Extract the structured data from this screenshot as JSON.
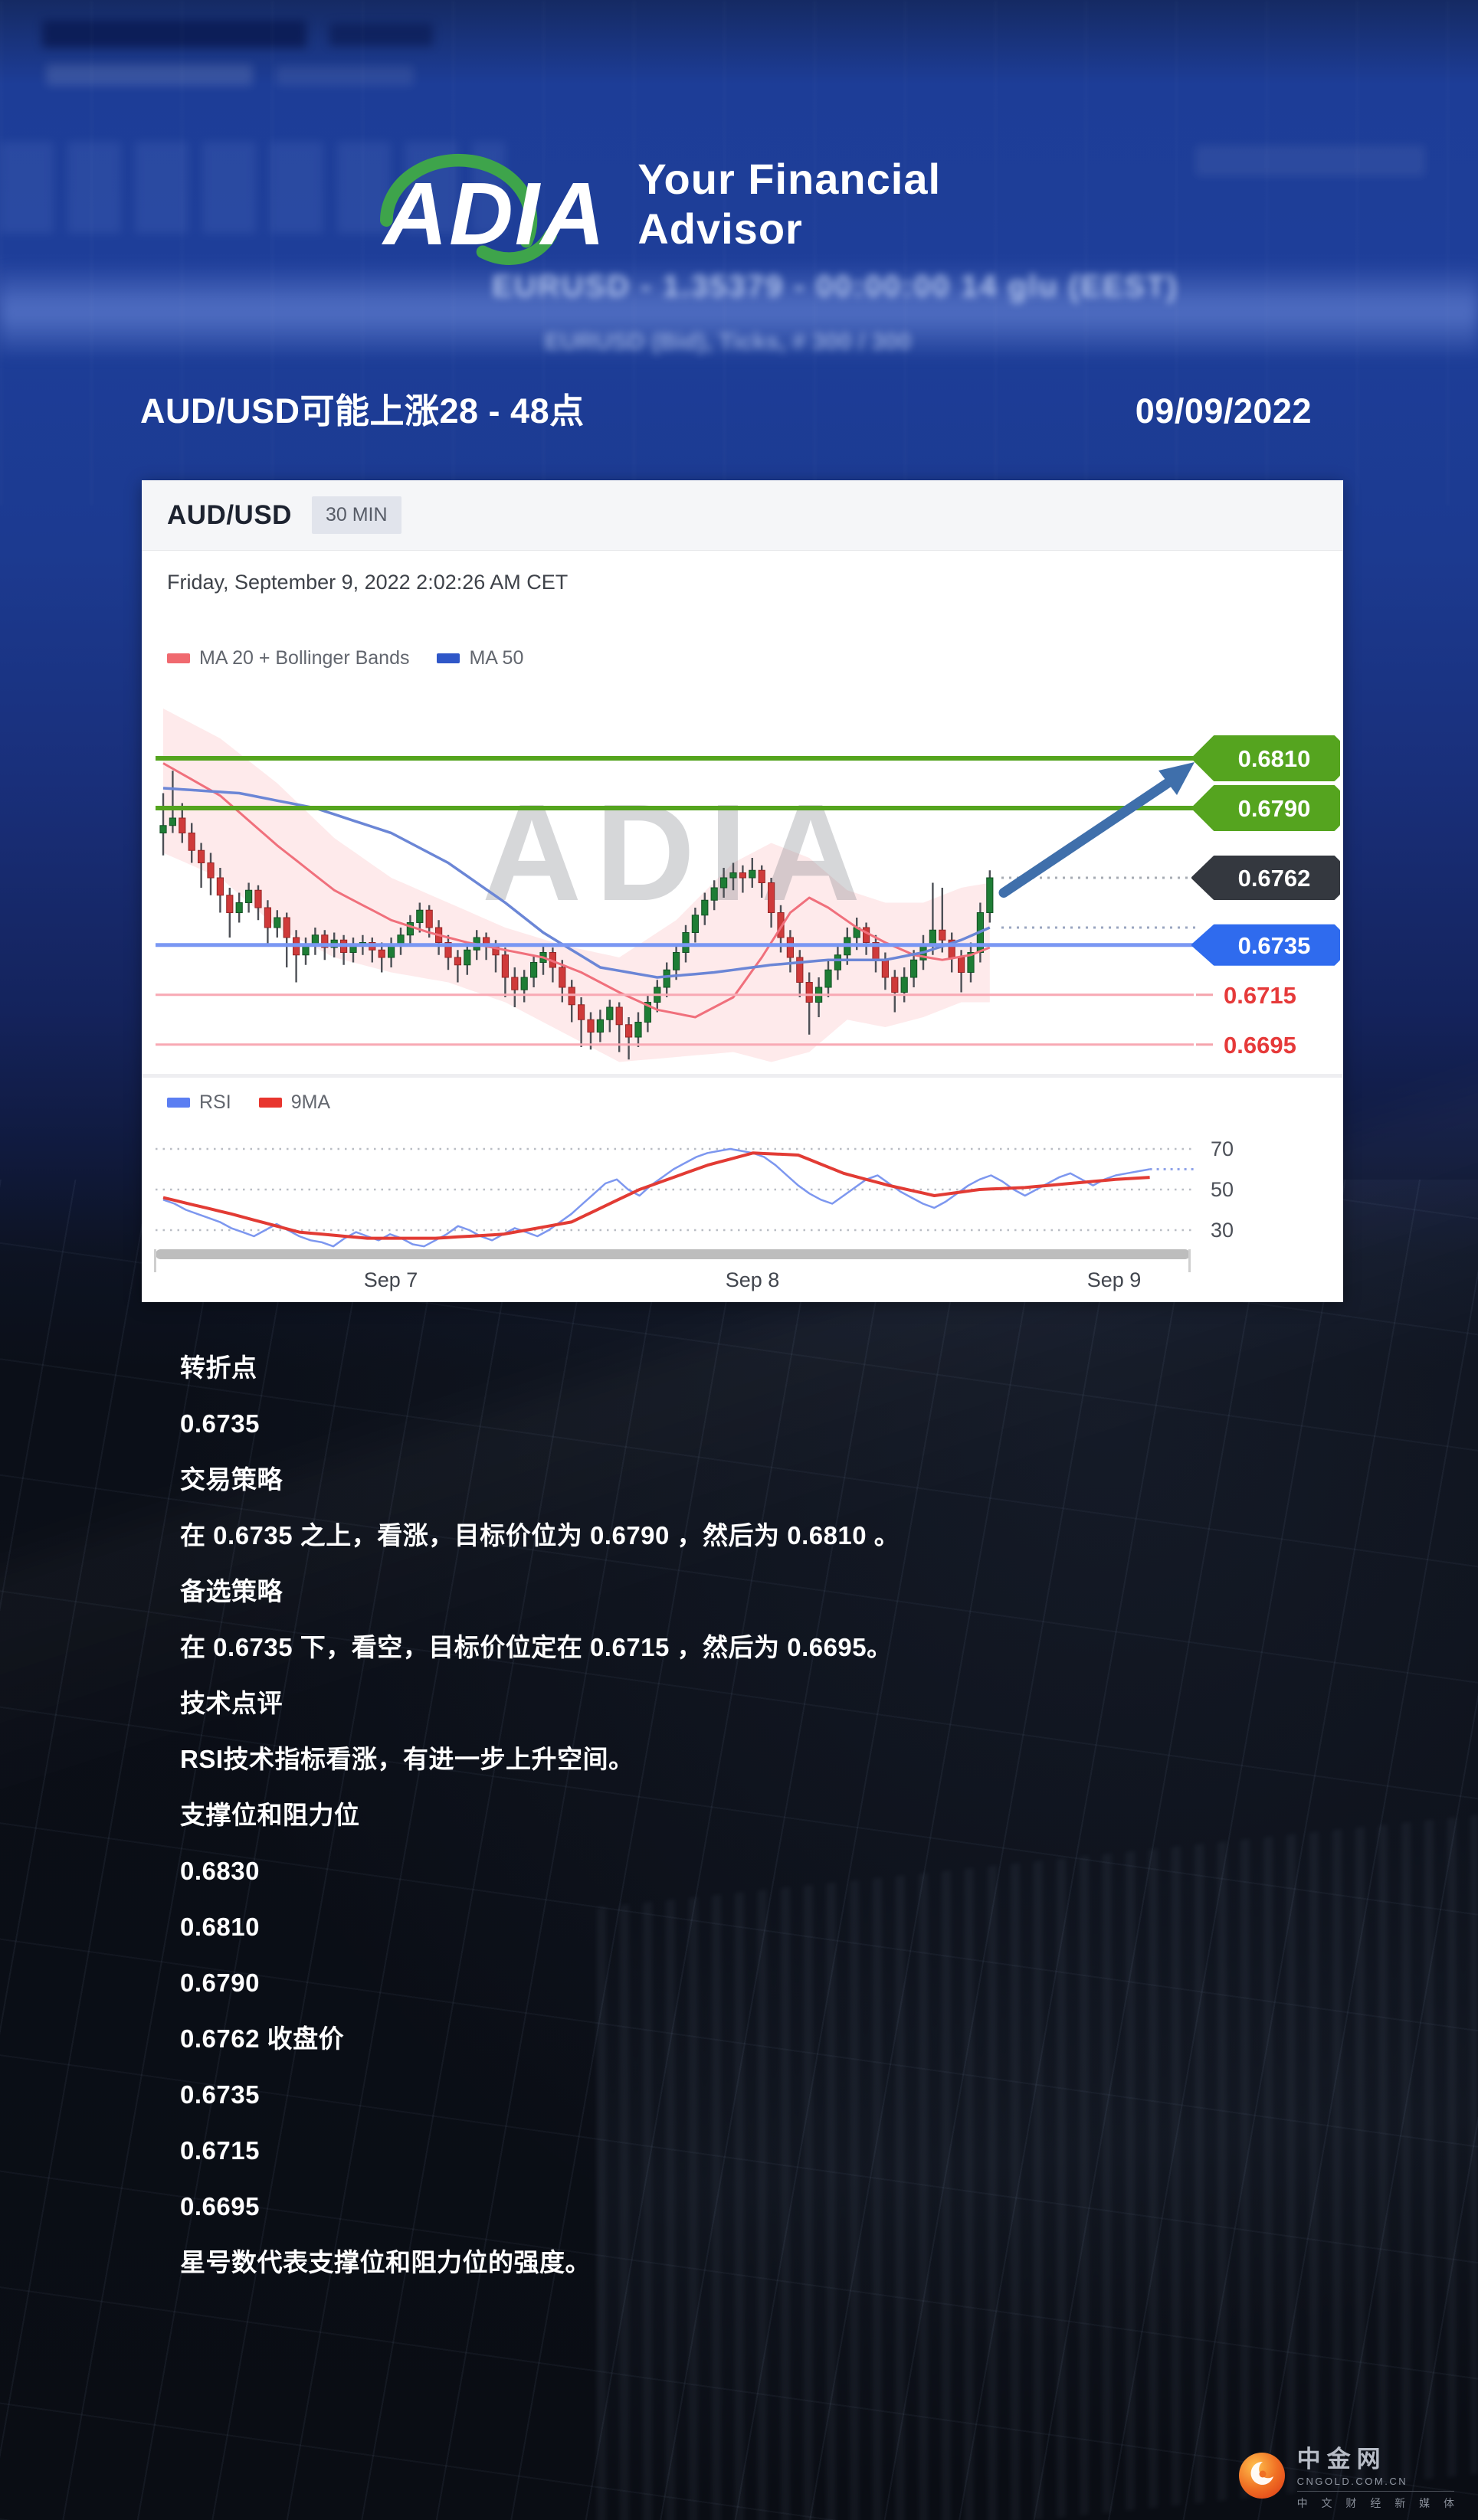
{
  "header": {
    "logo_text": "ADIA",
    "tagline": "Your Financial Advisor"
  },
  "title_row": {
    "title": "AUD/USD可能上涨28 - 48点",
    "date": "09/09/2022"
  },
  "background": {
    "blurred_line_1": "EURUSD - 1.35379 - 00:00:00 14 glu (EEST)",
    "blurred_line_2": "EURUSD (Bid), Ticks, # 300 / 300"
  },
  "chart_panel": {
    "symbol": "AUD/USD",
    "timeframe": "30 MIN",
    "timestamp": "Friday, September 9, 2022 2:02:26 AM CET",
    "watermark": "ADIA",
    "legend_price": [
      {
        "label": "MA 20 + Bollinger Bands",
        "color": "#f0696f"
      },
      {
        "label": "MA 50",
        "color": "#2f57c8"
      }
    ],
    "legend_rsi": [
      {
        "label": "RSI",
        "color": "#5b7ef2"
      },
      {
        "label": "9MA",
        "color": "#e8352e"
      }
    ]
  },
  "chart_data": {
    "type": "candlestick",
    "title": "AUD/USD 30 MIN",
    "pip": 0.0001,
    "price_levels": [
      {
        "price": 0.681,
        "kind": "resistance",
        "style": "tag",
        "color": "#55a41f",
        "line": "solid-green"
      },
      {
        "price": 0.679,
        "kind": "resistance",
        "style": "tag",
        "color": "#55a41f",
        "line": "solid-green"
      },
      {
        "price": 0.6762,
        "kind": "last_close",
        "style": "tag",
        "color": "#34383f",
        "line": "dotted-leader"
      },
      {
        "price": 0.6735,
        "kind": "pivot",
        "style": "tag",
        "color": "#2f6bee",
        "line": "solid-blue"
      },
      {
        "price": 0.6715,
        "kind": "support",
        "style": "text",
        "color": "#e63a3a",
        "line": "solid-pink"
      },
      {
        "price": 0.6695,
        "kind": "support",
        "style": "text",
        "color": "#e63a3a",
        "line": "solid-pink"
      }
    ],
    "candles_ohlc_pips": [
      [
        6780,
        6796,
        6771,
        6783
      ],
      [
        6783,
        6805,
        6780,
        6786
      ],
      [
        6786,
        6792,
        6776,
        6780
      ],
      [
        6780,
        6784,
        6768,
        6773
      ],
      [
        6773,
        6776,
        6758,
        6768
      ],
      [
        6768,
        6772,
        6755,
        6762
      ],
      [
        6762,
        6766,
        6748,
        6755
      ],
      [
        6755,
        6758,
        6738,
        6748
      ],
      [
        6748,
        6756,
        6744,
        6752
      ],
      [
        6752,
        6760,
        6748,
        6757
      ],
      [
        6757,
        6759,
        6745,
        6750
      ],
      [
        6750,
        6753,
        6735,
        6742
      ],
      [
        6742,
        6749,
        6738,
        6746
      ],
      [
        6746,
        6748,
        6726,
        6738
      ],
      [
        6738,
        6741,
        6720,
        6731
      ],
      [
        6731,
        6738,
        6727,
        6735
      ],
      [
        6735,
        6742,
        6731,
        6739
      ],
      [
        6739,
        6741,
        6729,
        6734
      ],
      [
        6734,
        6740,
        6730,
        6737
      ],
      [
        6737,
        6739,
        6727,
        6732
      ],
      [
        6732,
        6738,
        6728,
        6735
      ],
      [
        6735,
        6739,
        6731,
        6736
      ],
      [
        6736,
        6738,
        6728,
        6733
      ],
      [
        6733,
        6736,
        6724,
        6730
      ],
      [
        6730,
        6738,
        6726,
        6735
      ],
      [
        6735,
        6742,
        6731,
        6739
      ],
      [
        6739,
        6747,
        6735,
        6744
      ],
      [
        6744,
        6752,
        6740,
        6749
      ],
      [
        6749,
        6751,
        6738,
        6742
      ],
      [
        6742,
        6745,
        6731,
        6736
      ],
      [
        6736,
        6739,
        6725,
        6730
      ],
      [
        6730,
        6733,
        6720,
        6727
      ],
      [
        6727,
        6736,
        6723,
        6733
      ],
      [
        6733,
        6741,
        6729,
        6738
      ],
      [
        6738,
        6740,
        6729,
        6735
      ],
      [
        6735,
        6737,
        6724,
        6731
      ],
      [
        6731,
        6734,
        6714,
        6722
      ],
      [
        6722,
        6726,
        6710,
        6717
      ],
      [
        6717,
        6725,
        6712,
        6722
      ],
      [
        6722,
        6731,
        6718,
        6728
      ],
      [
        6728,
        6735,
        6723,
        6732
      ],
      [
        6732,
        6734,
        6720,
        6726
      ],
      [
        6726,
        6729,
        6712,
        6718
      ],
      [
        6718,
        6721,
        6704,
        6711
      ],
      [
        6711,
        6714,
        6694,
        6705
      ],
      [
        6705,
        6708,
        6693,
        6700
      ],
      [
        6700,
        6709,
        6696,
        6705
      ],
      [
        6705,
        6713,
        6700,
        6710
      ],
      [
        6710,
        6712,
        6692,
        6703
      ],
      [
        6703,
        6706,
        6689,
        6698
      ],
      [
        6698,
        6708,
        6694,
        6704
      ],
      [
        6704,
        6715,
        6700,
        6712
      ],
      [
        6712,
        6721,
        6708,
        6718
      ],
      [
        6718,
        6728,
        6714,
        6725
      ],
      [
        6725,
        6735,
        6721,
        6732
      ],
      [
        6732,
        6743,
        6728,
        6740
      ],
      [
        6740,
        6750,
        6736,
        6747
      ],
      [
        6747,
        6756,
        6743,
        6753
      ],
      [
        6753,
        6761,
        6749,
        6758
      ],
      [
        6758,
        6766,
        6754,
        6762
      ],
      [
        6762,
        6768,
        6757,
        6764
      ],
      [
        6764,
        6767,
        6756,
        6762
      ],
      [
        6762,
        6770,
        6758,
        6765
      ],
      [
        6765,
        6767,
        6754,
        6760
      ],
      [
        6760,
        6762,
        6742,
        6748
      ],
      [
        6748,
        6751,
        6732,
        6738
      ],
      [
        6738,
        6741,
        6724,
        6730
      ],
      [
        6730,
        6733,
        6714,
        6720
      ],
      [
        6720,
        6724,
        6699,
        6712
      ],
      [
        6712,
        6722,
        6706,
        6718
      ],
      [
        6718,
        6729,
        6714,
        6725
      ],
      [
        6725,
        6735,
        6721,
        6731
      ],
      [
        6731,
        6742,
        6727,
        6738
      ],
      [
        6738,
        6746,
        6733,
        6742
      ],
      [
        6742,
        6744,
        6731,
        6736
      ],
      [
        6736,
        6739,
        6724,
        6729
      ],
      [
        6729,
        6732,
        6717,
        6722
      ],
      [
        6722,
        6725,
        6708,
        6716
      ],
      [
        6716,
        6726,
        6712,
        6722
      ],
      [
        6722,
        6733,
        6718,
        6729
      ],
      [
        6729,
        6739,
        6725,
        6735
      ],
      [
        6735,
        6760,
        6731,
        6741
      ],
      [
        6741,
        6758,
        6732,
        6737
      ],
      [
        6737,
        6740,
        6724,
        6730
      ],
      [
        6730,
        6733,
        6716,
        6724
      ],
      [
        6724,
        6736,
        6720,
        6732
      ],
      [
        6732,
        6752,
        6728,
        6748
      ],
      [
        6748,
        6765,
        6744,
        6762
      ]
    ],
    "ma20_keypoints": [
      [
        0,
        6808
      ],
      [
        6,
        6795
      ],
      [
        12,
        6775
      ],
      [
        18,
        6757
      ],
      [
        24,
        6745
      ],
      [
        28,
        6740
      ],
      [
        32,
        6736
      ],
      [
        36,
        6733
      ],
      [
        40,
        6730
      ],
      [
        44,
        6724
      ],
      [
        48,
        6716
      ],
      [
        52,
        6709
      ],
      [
        56,
        6706
      ],
      [
        60,
        6714
      ],
      [
        63,
        6730
      ],
      [
        66,
        6748
      ],
      [
        68,
        6754
      ],
      [
        70,
        6750
      ],
      [
        73,
        6742
      ],
      [
        76,
        6736
      ],
      [
        79,
        6731
      ],
      [
        82,
        6729
      ],
      [
        85,
        6731
      ],
      [
        87,
        6734
      ]
    ],
    "ma50_keypoints": [
      [
        0,
        6798
      ],
      [
        8,
        6796
      ],
      [
        16,
        6790
      ],
      [
        24,
        6780
      ],
      [
        30,
        6768
      ],
      [
        36,
        6752
      ],
      [
        40,
        6740
      ],
      [
        46,
        6726
      ],
      [
        52,
        6722
      ],
      [
        58,
        6724
      ],
      [
        64,
        6727
      ],
      [
        70,
        6729
      ],
      [
        76,
        6729
      ],
      [
        80,
        6732
      ],
      [
        84,
        6737
      ],
      [
        87,
        6742
      ]
    ],
    "bollinger_upper_keypoints": [
      [
        0,
        6830
      ],
      [
        6,
        6818
      ],
      [
        12,
        6800
      ],
      [
        18,
        6778
      ],
      [
        24,
        6762
      ],
      [
        30,
        6752
      ],
      [
        36,
        6742
      ],
      [
        42,
        6735
      ],
      [
        48,
        6730
      ],
      [
        54,
        6745
      ],
      [
        60,
        6768
      ],
      [
        64,
        6776
      ],
      [
        68,
        6770
      ],
      [
        72,
        6757
      ],
      [
        76,
        6752
      ],
      [
        80,
        6752
      ],
      [
        84,
        6758
      ],
      [
        87,
        6760
      ]
    ],
    "bollinger_lower_keypoints": [
      [
        0,
        6772
      ],
      [
        6,
        6762
      ],
      [
        12,
        6742
      ],
      [
        18,
        6730
      ],
      [
        24,
        6724
      ],
      [
        30,
        6720
      ],
      [
        36,
        6712
      ],
      [
        42,
        6700
      ],
      [
        48,
        6688
      ],
      [
        54,
        6690
      ],
      [
        60,
        6692
      ],
      [
        64,
        6688
      ],
      [
        68,
        6692
      ],
      [
        72,
        6705
      ],
      [
        76,
        6702
      ],
      [
        80,
        6706
      ],
      [
        84,
        6712
      ],
      [
        87,
        6712
      ]
    ],
    "rsi": {
      "values": [
        45,
        43,
        40,
        38,
        36,
        34,
        31,
        29,
        27,
        30,
        33,
        30,
        27,
        25,
        24,
        22,
        26,
        29,
        27,
        25,
        28,
        26,
        23,
        22,
        25,
        28,
        32,
        30,
        27,
        25,
        28,
        31,
        29,
        27,
        30,
        34,
        38,
        43,
        48,
        53,
        55,
        50,
        47,
        52,
        56,
        60,
        63,
        66,
        68,
        69,
        70,
        69,
        68,
        66,
        62,
        57,
        52,
        48,
        45,
        43,
        47,
        51,
        55,
        57,
        53,
        49,
        46,
        43,
        41,
        44,
        48,
        52,
        55,
        57,
        54,
        50,
        47,
        50,
        53,
        56,
        58,
        55,
        52,
        55,
        57,
        58,
        59,
        60
      ],
      "gridlines": [
        70,
        50,
        30
      ],
      "ma9_keypoints": [
        [
          0,
          46
        ],
        [
          6,
          38
        ],
        [
          12,
          29
        ],
        [
          18,
          26
        ],
        [
          24,
          26
        ],
        [
          30,
          28
        ],
        [
          36,
          34
        ],
        [
          42,
          50
        ],
        [
          48,
          62
        ],
        [
          52,
          68
        ],
        [
          56,
          67
        ],
        [
          60,
          58
        ],
        [
          64,
          52
        ],
        [
          68,
          47
        ],
        [
          72,
          50
        ],
        [
          76,
          51
        ],
        [
          80,
          53
        ],
        [
          84,
          55
        ],
        [
          87,
          56
        ]
      ],
      "dotted_last_value": 60
    },
    "x_ticks": [
      {
        "label": "Sep 7",
        "x": 325
      },
      {
        "label": "Sep 8",
        "x": 797
      },
      {
        "label": "Sep 9",
        "x": 1269
      }
    ],
    "projection_arrow": {
      "from_price": 0.6756,
      "to_price": 0.6808,
      "color": "#3f6fab"
    }
  },
  "analysis": {
    "lines": [
      "转折点",
      "0.6735",
      "交易策略",
      "在 0.6735 之上，看涨，目标价位为 0.6790 ，然后为 0.6810 。",
      "备选策略",
      "在 0.6735 下，看空，目标价位定在 0.6715 ，然后为 0.6695。",
      "技术点评",
      "RSI技术指标看涨，有进一步上升空间。",
      "支撑位和阻力位",
      "0.6830",
      "0.6810",
      "0.6790",
      "0.6762 收盘价",
      "0.6735",
      "0.6715",
      "0.6695",
      "星号数代表支撑位和阻力位的强度。"
    ]
  },
  "footer_logo": {
    "name": "中金网",
    "domain": "CNGOLD.COM.CN",
    "tagline": "中 文 财 经 新 媒 体"
  }
}
